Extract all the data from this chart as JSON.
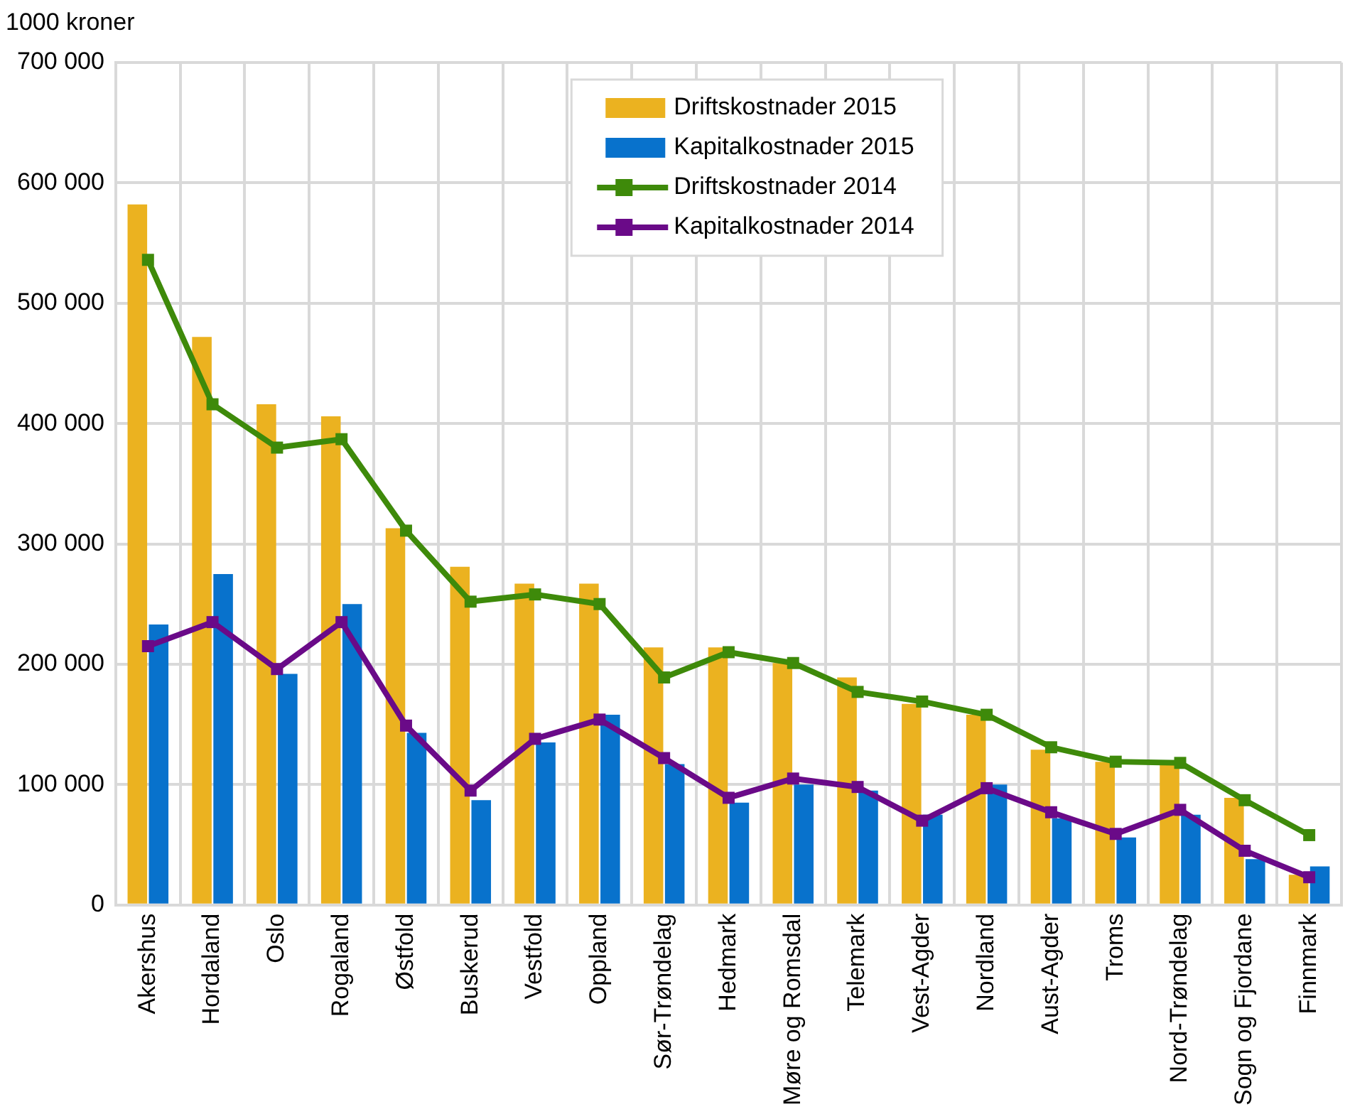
{
  "chart_data": {
    "type": "bar",
    "ylabel": "1000 kroner",
    "categories": [
      "Akershus",
      "Hordaland",
      "Oslo",
      "Rogaland",
      "Østfold",
      "Buskerud",
      "Vestfold",
      "Oppland",
      "Sør-Trøndelag",
      "Hedmark",
      "Møre og Romsdal",
      "Telemark",
      "Vest-Agder",
      "Nordland",
      "Aust-Agder",
      "Troms",
      "Nord-Trøndelag",
      "Sogn og Fjordane",
      "Finnmark"
    ],
    "series": [
      {
        "name": "Driftskostnader 2015",
        "color": "#ebb220",
        "values": [
          582000,
          472000,
          416000,
          406000,
          313000,
          281000,
          267000,
          267000,
          214000,
          214000,
          201000,
          189000,
          167000,
          158000,
          129000,
          119000,
          119000,
          89000,
          25000
        ]
      },
      {
        "name": "Kapitalkostnader 2015",
        "color": "#0872cc",
        "values": [
          233000,
          275000,
          192000,
          250000,
          143000,
          87000,
          135000,
          158000,
          117000,
          85000,
          100000,
          95000,
          75000,
          100000,
          72000,
          56000,
          75000,
          38000,
          32000
        ]
      },
      {
        "name": "Driftskostnader 2014",
        "type": "line",
        "color": "#3e8a0a",
        "values": [
          536000,
          416000,
          380000,
          387000,
          311000,
          252000,
          258000,
          250000,
          189000,
          210000,
          201000,
          177000,
          169000,
          158000,
          131000,
          119000,
          118000,
          87000,
          58000
        ]
      },
      {
        "name": "Kapitalkostnader 2014",
        "type": "line",
        "color": "#6a0a88",
        "values": [
          215000,
          235000,
          196000,
          235000,
          149000,
          95000,
          138000,
          154000,
          122000,
          89000,
          105000,
          98000,
          70000,
          97000,
          77000,
          59000,
          79000,
          45000,
          23000
        ]
      }
    ],
    "ylim": [
      0,
      700000
    ],
    "yticks": [
      {
        "value": 0,
        "label": "0"
      },
      {
        "value": 100000,
        "label": "100 000"
      },
      {
        "value": 200000,
        "label": "200 000"
      },
      {
        "value": 300000,
        "label": "300 000"
      },
      {
        "value": 400000,
        "label": "400 000"
      },
      {
        "value": 500000,
        "label": "500 000"
      },
      {
        "value": 600000,
        "label": "600 000"
      },
      {
        "value": 700000,
        "label": "700 000"
      }
    ],
    "grid": true,
    "legend": "top",
    "marker": "square",
    "line_style": "solid"
  }
}
